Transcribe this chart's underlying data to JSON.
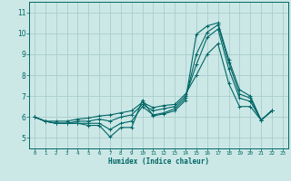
{
  "xlabel": "Humidex (Indice chaleur)",
  "background_color": "#cbe8e6",
  "grid_color": "#aacccc",
  "line_color": "#006666",
  "xlim": [
    -0.5,
    23.5
  ],
  "ylim": [
    4.5,
    11.5
  ],
  "xticks": [
    0,
    1,
    2,
    3,
    4,
    5,
    6,
    7,
    8,
    9,
    10,
    11,
    12,
    13,
    14,
    15,
    16,
    17,
    18,
    19,
    20,
    21,
    22,
    23
  ],
  "yticks": [
    5,
    6,
    7,
    8,
    9,
    10,
    11
  ],
  "series": [
    [
      6.0,
      5.8,
      5.7,
      5.7,
      5.7,
      5.6,
      5.6,
      5.05,
      5.5,
      5.5,
      6.8,
      6.05,
      6.15,
      6.3,
      6.8,
      9.95,
      10.35,
      10.5,
      8.75,
      7.3,
      7.0,
      5.85,
      6.3,
      null
    ],
    [
      6.0,
      5.8,
      5.7,
      5.7,
      5.7,
      5.7,
      5.7,
      5.4,
      5.7,
      5.8,
      6.5,
      6.1,
      6.2,
      6.4,
      6.9,
      9.0,
      10.05,
      10.4,
      8.6,
      7.1,
      6.9,
      5.85,
      6.3,
      null
    ],
    [
      6.0,
      5.8,
      5.7,
      5.7,
      5.8,
      5.8,
      5.9,
      5.8,
      6.0,
      6.1,
      6.6,
      6.3,
      6.4,
      6.5,
      7.0,
      8.5,
      9.8,
      10.2,
      8.3,
      6.9,
      6.75,
      5.85,
      6.3,
      null
    ],
    [
      6.0,
      5.8,
      5.8,
      5.8,
      5.9,
      5.95,
      6.05,
      6.1,
      6.2,
      6.3,
      6.7,
      6.45,
      6.55,
      6.6,
      7.1,
      8.0,
      9.0,
      9.5,
      7.6,
      6.5,
      6.5,
      5.85,
      6.3,
      null
    ]
  ]
}
